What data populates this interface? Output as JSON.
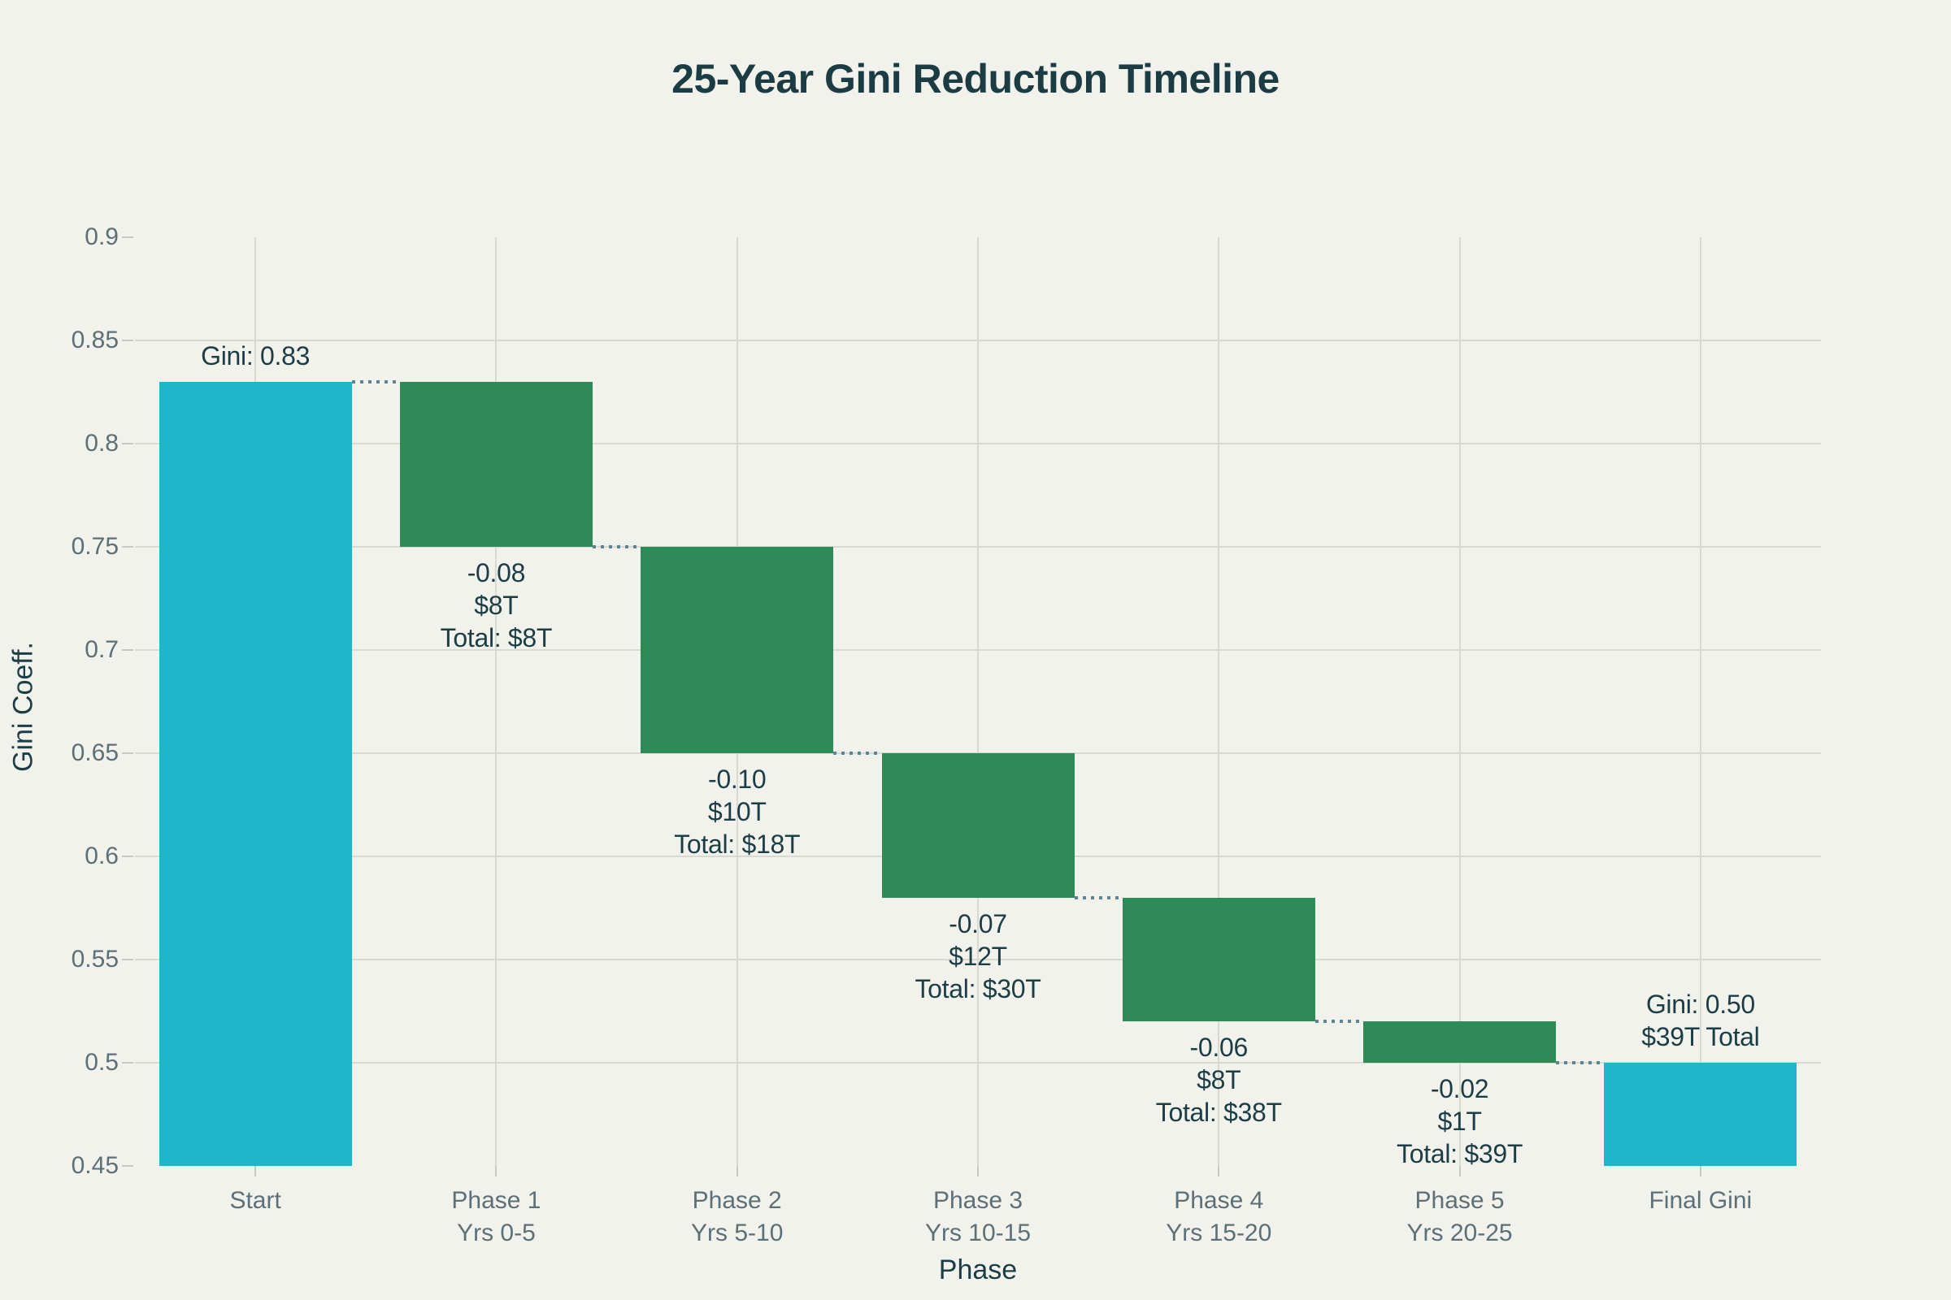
{
  "page": {
    "background": "#F1F2EB"
  },
  "chart_data": {
    "type": "waterfall",
    "title": "25-Year Gini Reduction Timeline",
    "xlabel": "Phase",
    "ylabel": "Gini Coeff.",
    "ylim": [
      0.45,
      0.9
    ],
    "grid": true,
    "legend": "none",
    "yticks": [
      {
        "value": 0.9,
        "label": "0.9"
      },
      {
        "value": 0.85,
        "label": "0.85"
      },
      {
        "value": 0.8,
        "label": "0.8"
      },
      {
        "value": 0.75,
        "label": "0.75"
      },
      {
        "value": 0.7,
        "label": "0.7"
      },
      {
        "value": 0.65,
        "label": "0.65"
      },
      {
        "value": 0.6,
        "label": "0.6"
      },
      {
        "value": 0.55,
        "label": "0.55"
      },
      {
        "value": 0.5,
        "label": "0.5"
      },
      {
        "value": 0.45,
        "label": "0.45"
      }
    ],
    "bars": [
      {
        "slug": "start",
        "category": "Start",
        "kind": "total",
        "top": 0.83,
        "bottom": 0.45,
        "link": 0.83,
        "labels": [
          "Gini: 0.83"
        ],
        "label_pos": "above"
      },
      {
        "slug": "phase-1",
        "category": "Phase 1\nYrs 0-5",
        "kind": "decrease",
        "top": 0.83,
        "bottom": 0.75,
        "link": 0.75,
        "labels": [
          "-0.08",
          "$8T",
          "Total: $8T"
        ],
        "label_pos": "below"
      },
      {
        "slug": "phase-2",
        "category": "Phase 2\nYrs 5-10",
        "kind": "decrease",
        "top": 0.75,
        "bottom": 0.65,
        "link": 0.65,
        "labels": [
          "-0.10",
          "$10T",
          "Total: $18T"
        ],
        "label_pos": "below"
      },
      {
        "slug": "phase-3",
        "category": "Phase 3\nYrs 10-15",
        "kind": "decrease",
        "top": 0.65,
        "bottom": 0.58,
        "link": 0.58,
        "labels": [
          "-0.07",
          "$12T",
          "Total: $30T"
        ],
        "label_pos": "below"
      },
      {
        "slug": "phase-4",
        "category": "Phase 4\nYrs 15-20",
        "kind": "decrease",
        "top": 0.58,
        "bottom": 0.52,
        "link": 0.52,
        "labels": [
          "-0.06",
          "$8T",
          "Total: $38T"
        ],
        "label_pos": "below"
      },
      {
        "slug": "phase-5",
        "category": "Phase 5\nYrs 20-25",
        "kind": "decrease",
        "top": 0.52,
        "bottom": 0.5,
        "link": 0.5,
        "labels": [
          "-0.02",
          "$1T",
          "Total: $39T"
        ],
        "label_pos": "below"
      },
      {
        "slug": "final-gini",
        "category": "Final Gini",
        "kind": "total",
        "top": 0.5,
        "bottom": 0.45,
        "link": null,
        "labels": [
          "Gini: 0.50",
          "$39T Total"
        ],
        "label_pos": "above"
      }
    ],
    "colors": {
      "total": "#20B5C9",
      "decrease": "#2E8A57",
      "connector": "#5C8593",
      "gridline": "#D8DAD2",
      "tick_mark": "#C7C9C1",
      "tick_text": "#5D6F77",
      "label_text": "#1D3D45",
      "title_text": "#1C3C44"
    }
  }
}
